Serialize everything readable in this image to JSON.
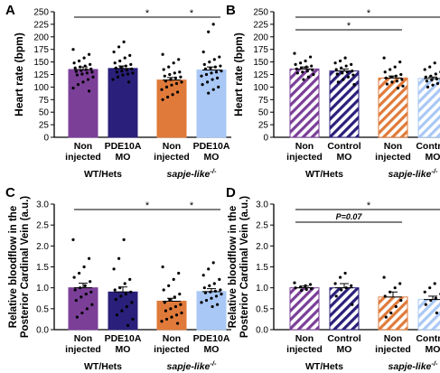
{
  "colors": {
    "purple": "#7B3F98",
    "navy": "#2A1F7A",
    "orange": "#E07A3A",
    "lightblue": "#A9C8F5",
    "axis": "#000000"
  },
  "chart_data": [
    {
      "panel": "A",
      "type": "bar",
      "ylabel": "Heart rate (bpm)",
      "ylim": [
        0,
        250
      ],
      "yticks": [
        "0",
        "25",
        "50",
        "75",
        "100",
        "125",
        "150",
        "175",
        "200",
        "225",
        "250"
      ],
      "bar_labels": [
        [
          "Non",
          "injected"
        ],
        [
          "PDE10A",
          "MO"
        ],
        [
          "Non",
          "injected"
        ],
        [
          "PDE10A",
          "MO"
        ]
      ],
      "groups": [
        {
          "label": "WT/Hets",
          "sup": ""
        },
        {
          "label": "sapje-like",
          "sup": "-/-"
        }
      ],
      "hatched": false,
      "values": [
        135,
        137,
        114,
        134
      ],
      "errors": [
        5,
        5,
        5,
        6
      ],
      "points": [
        [
          175,
          165,
          158,
          152,
          148,
          145,
          142,
          140,
          138,
          136,
          135,
          133,
          131,
          130,
          128,
          126,
          124,
          120,
          115,
          110,
          105,
          98,
          92
        ],
        [
          190,
          180,
          170,
          163,
          158,
          152,
          148,
          145,
          142,
          140,
          138,
          136,
          134,
          132,
          130,
          128,
          126,
          124,
          120,
          115,
          110
        ],
        [
          165,
          155,
          148,
          140,
          135,
          130,
          128,
          125,
          122,
          120,
          118,
          115,
          112,
          110,
          107,
          104,
          100,
          95,
          90,
          85,
          80,
          75
        ],
        [
          225,
          210,
          170,
          160,
          155,
          150,
          145,
          142,
          140,
          138,
          136,
          132,
          130,
          128,
          125,
          122,
          118,
          115,
          110,
          105,
          100,
          95,
          88
        ]
      ],
      "significance": [
        {
          "from": 0,
          "to": 3,
          "label": "*"
        },
        {
          "from": 2,
          "to": 3,
          "label": "*"
        }
      ]
    },
    {
      "panel": "B",
      "type": "bar",
      "ylabel": "Heart rate (bpm)",
      "ylim": [
        0,
        250
      ],
      "yticks": [
        "0",
        "25",
        "50",
        "75",
        "100",
        "125",
        "150",
        "175",
        "200",
        "225",
        "250"
      ],
      "bar_labels": [
        [
          "Non",
          "injected"
        ],
        [
          "Control",
          "MO"
        ],
        [
          "Non",
          "injected"
        ],
        [
          "Control",
          "MO"
        ]
      ],
      "groups": [
        {
          "label": "WT/Hets",
          "sup": ""
        },
        {
          "label": "sapje-like",
          "sup": "-/-"
        }
      ],
      "hatched": true,
      "values": [
        136,
        132,
        118,
        117
      ],
      "errors": [
        4,
        4,
        4,
        3
      ],
      "points": [
        [
          167,
          160,
          152,
          148,
          145,
          142,
          140,
          138,
          136,
          134,
          132,
          130,
          128,
          125,
          120,
          115
        ],
        [
          158,
          152,
          148,
          145,
          142,
          138,
          135,
          132,
          130,
          128,
          126,
          124,
          120,
          115,
          110,
          105
        ],
        [
          158,
          150,
          140,
          135,
          130,
          125,
          122,
          120,
          118,
          115,
          112,
          110,
          106,
          102,
          98
        ],
        [
          148,
          140,
          135,
          130,
          126,
          122,
          120,
          118,
          116,
          114,
          112,
          110,
          107,
          104,
          100
        ]
      ],
      "significance": [
        {
          "from": 0,
          "to": 3,
          "label": "*"
        },
        {
          "from": 0,
          "to": 2,
          "label": "*"
        }
      ]
    },
    {
      "panel": "C",
      "type": "bar",
      "ylabel": "Relative bloodflow in the Posterior Cardinal Vein (a.u.)",
      "ylabel_lines": [
        "Relative bloodflow in the",
        "Posterior Cardinal Vein (a.u.)"
      ],
      "ylim": [
        0,
        3.0
      ],
      "yticks": [
        "0.0",
        "0.5",
        "1.0",
        "1.5",
        "2.0",
        "2.5",
        "3.0"
      ],
      "bar_labels": [
        [
          "Non",
          "injected"
        ],
        [
          "PDE10A",
          "MO"
        ],
        [
          "Non",
          "injected"
        ],
        [
          "PDE10A",
          "MO"
        ]
      ],
      "groups": [
        {
          "label": "WT/Hets",
          "sup": ""
        },
        {
          "label": "sapje-like",
          "sup": "-/-"
        }
      ],
      "hatched": false,
      "values": [
        1.0,
        0.9,
        0.68,
        0.91
      ],
      "errors": [
        0.11,
        0.12,
        0.07,
        0.07
      ],
      "points": [
        [
          2.15,
          1.7,
          1.5,
          1.35,
          1.25,
          1.15,
          1.05,
          1.0,
          0.95,
          0.9,
          0.85,
          0.78,
          0.7,
          0.6,
          0.5,
          0.4,
          0.3
        ],
        [
          2.15,
          1.7,
          1.45,
          1.2,
          1.1,
          1.0,
          0.95,
          0.9,
          0.85,
          0.8,
          0.72,
          0.65,
          0.55,
          0.45,
          0.35,
          0.25,
          0.1
        ],
        [
          1.5,
          1.35,
          1.2,
          1.05,
          0.95,
          0.85,
          0.78,
          0.72,
          0.65,
          0.6,
          0.55,
          0.5,
          0.45,
          0.4,
          0.35,
          0.3,
          0.25,
          0.2,
          0.15
        ],
        [
          1.6,
          1.45,
          1.3,
          1.2,
          1.1,
          1.05,
          1.0,
          0.95,
          0.92,
          0.9,
          0.88,
          0.85,
          0.8,
          0.75,
          0.7,
          0.65,
          0.6,
          0.55
        ]
      ],
      "significance": [
        {
          "from": 0,
          "to": 3,
          "label": "*"
        },
        {
          "from": 2,
          "to": 3,
          "label": "*"
        }
      ]
    },
    {
      "panel": "D",
      "type": "bar",
      "ylabel": "Relative bloodflow in the Posterior Cardinal Vein (a.u.)",
      "ylabel_lines": [
        "Relative bloodflow in the",
        "Posterior Cardinal Vein (a.u.)"
      ],
      "ylim": [
        0,
        3.0
      ],
      "yticks": [
        "0.0",
        "0.5",
        "1.0",
        "1.5",
        "2.0",
        "2.5",
        "3.0"
      ],
      "bar_labels": [
        [
          "Non",
          "injected"
        ],
        [
          "Control",
          "MO"
        ],
        [
          "Non",
          "injected"
        ],
        [
          "Control",
          "MO"
        ]
      ],
      "groups": [
        {
          "label": "WT/Hets",
          "sup": ""
        },
        {
          "label": "sapje-like",
          "sup": "-/-"
        }
      ],
      "hatched": true,
      "values": [
        1.0,
        1.0,
        0.78,
        0.72
      ],
      "errors": [
        0.04,
        0.1,
        0.12,
        0.08
      ],
      "points": [
        [
          1.12,
          1.08,
          1.05,
          1.02,
          1.0,
          0.98,
          0.96,
          0.94
        ],
        [
          1.35,
          1.25,
          1.1,
          1.05,
          1.0,
          0.95,
          0.8,
          0.6
        ],
        [
          1.25,
          1.1,
          1.0,
          0.9,
          0.8,
          0.7,
          0.55,
          0.4,
          0.3
        ],
        [
          1.1,
          1.0,
          0.9,
          0.85,
          0.75,
          0.7,
          0.6,
          0.5,
          0.4
        ]
      ],
      "significance": [
        {
          "from": 0,
          "to": 3,
          "label": "*"
        },
        {
          "from": 0,
          "to": 2,
          "label": "P=0.07"
        }
      ]
    }
  ]
}
